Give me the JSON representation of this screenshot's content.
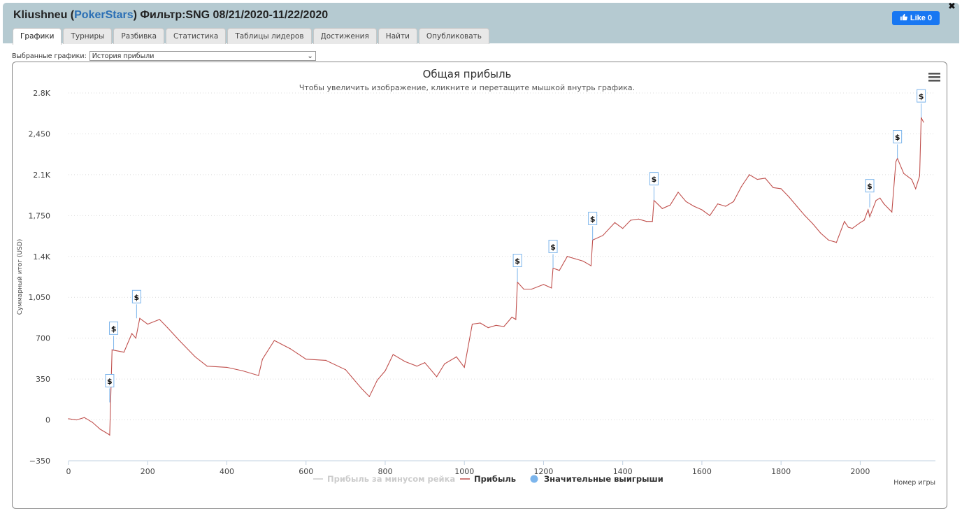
{
  "header": {
    "player": "Kliushneu",
    "paren_open": " (",
    "site": "PokerStars",
    "paren_close": ")",
    "filter": " Фильтр:SNG 08/21/2020-11/22/2020"
  },
  "tabs": [
    {
      "label": "Графики",
      "active": true
    },
    {
      "label": "Турниры"
    },
    {
      "label": "Разбивка"
    },
    {
      "label": "Статистика"
    },
    {
      "label": "Таблицы лидеров"
    },
    {
      "label": "Достижения"
    },
    {
      "label": "Найти"
    },
    {
      "label": "Опубликовать"
    }
  ],
  "like_button": {
    "label": "Like 0",
    "icon": "thumbs-up-icon"
  },
  "close_icon": "✖",
  "graph_select": {
    "label": "Выбранные графики:",
    "value": "История прибыли"
  },
  "menu_icon": "hamburger-icon",
  "chart_data": {
    "type": "line",
    "title": "Общая прибыль",
    "subtitle": "Чтобы увеличить изображение, кликните и перетащите мышкой внутрь графика.",
    "xlabel": "Номер игры",
    "ylabel": "Суммарный итог (USD)",
    "xlim": [
      0,
      2190
    ],
    "ylim": [
      -350,
      2800
    ],
    "x_ticks": [
      0,
      200,
      400,
      600,
      800,
      1000,
      1200,
      1400,
      1600,
      1800,
      2000
    ],
    "y_ticks": [
      {
        "value": -350,
        "label": "−350"
      },
      {
        "value": 0,
        "label": "0"
      },
      {
        "value": 350,
        "label": "350"
      },
      {
        "value": 700,
        "label": "700"
      },
      {
        "value": 1050,
        "label": "1,050"
      },
      {
        "value": 1400,
        "label": "1.4K"
      },
      {
        "value": 1750,
        "label": "1,750"
      },
      {
        "value": 2100,
        "label": "2.1K"
      },
      {
        "value": 2450,
        "label": "2,450"
      },
      {
        "value": 2800,
        "label": "2.8K"
      }
    ],
    "grid": true,
    "legend": [
      {
        "name": "Прибыль за минусом рейка",
        "color": "#cccccc",
        "marker": "line",
        "hidden": true
      },
      {
        "name": "Прибыль",
        "color": "#c0504d",
        "marker": "line"
      },
      {
        "name": "Значительные выигрыши",
        "color": "#7cb5ec",
        "marker": "circle"
      }
    ],
    "legend_position": "bottom-center",
    "series": [
      {
        "name": "Прибыль",
        "color": "#c0504d",
        "x": [
          0,
          20,
          40,
          60,
          80,
          100,
          104,
          110,
          140,
          160,
          170,
          180,
          200,
          230,
          250,
          280,
          320,
          350,
          400,
          440,
          480,
          490,
          520,
          560,
          600,
          650,
          700,
          740,
          760,
          780,
          800,
          820,
          850,
          880,
          900,
          930,
          950,
          980,
          1000,
          1020,
          1040,
          1060,
          1080,
          1100,
          1120,
          1130,
          1134,
          1150,
          1170,
          1200,
          1220,
          1224,
          1240,
          1260,
          1280,
          1300,
          1320,
          1324,
          1350,
          1380,
          1400,
          1420,
          1440,
          1460,
          1475,
          1479,
          1500,
          1520,
          1540,
          1560,
          1580,
          1600,
          1620,
          1640,
          1660,
          1680,
          1700,
          1720,
          1740,
          1760,
          1780,
          1800,
          1820,
          1840,
          1860,
          1880,
          1900,
          1920,
          1940,
          1960,
          1970,
          1980,
          2000,
          2010,
          2020,
          2024,
          2040,
          2050,
          2060,
          2080,
          2090,
          2094,
          2110,
          2130,
          2140,
          2150,
          2154,
          2160
        ],
        "y": [
          10,
          0,
          20,
          -20,
          -80,
          -120,
          -130,
          600,
          580,
          740,
          700,
          870,
          820,
          860,
          790,
          680,
          540,
          460,
          450,
          420,
          380,
          520,
          680,
          610,
          520,
          510,
          430,
          270,
          200,
          340,
          420,
          560,
          500,
          460,
          490,
          370,
          480,
          540,
          450,
          820,
          830,
          790,
          810,
          800,
          880,
          860,
          1180,
          1120,
          1120,
          1160,
          1130,
          1300,
          1280,
          1400,
          1380,
          1360,
          1320,
          1540,
          1580,
          1690,
          1640,
          1710,
          1720,
          1700,
          1700,
          1880,
          1810,
          1840,
          1950,
          1870,
          1830,
          1800,
          1750,
          1850,
          1830,
          1870,
          2000,
          2100,
          2060,
          2070,
          1990,
          1980,
          1910,
          1830,
          1750,
          1680,
          1600,
          1540,
          1520,
          1700,
          1650,
          1640,
          1690,
          1710,
          1800,
          1740,
          1880,
          1900,
          1850,
          1780,
          2210,
          2240,
          2110,
          2060,
          1980,
          2090,
          2590,
          2550
        ]
      },
      {
        "name": "Значительные выигрыши",
        "type": "flag",
        "flag_label": "$",
        "x": [
          104,
          114,
          172,
          1134,
          1224,
          1324,
          1479,
          2024,
          2094,
          2154
        ],
        "y": [
          150,
          600,
          870,
          1180,
          1300,
          1540,
          1880,
          1820,
          2240,
          2590
        ]
      }
    ]
  }
}
